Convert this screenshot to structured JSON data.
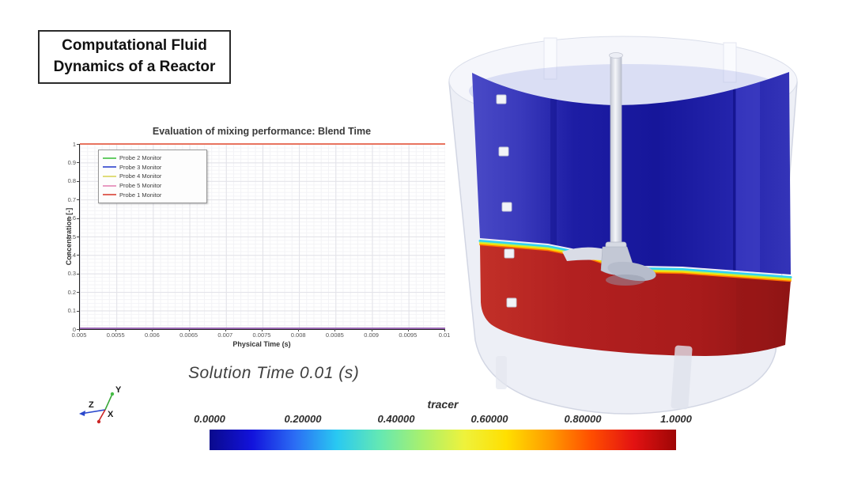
{
  "slide": {
    "title_line1": "Computational Fluid",
    "title_line2": "Dynamics of a Reactor",
    "solution_time": "Solution Time 0.01 (s)"
  },
  "chart": {
    "title": "Evaluation of mixing performance: Blend Time",
    "xlabel": "Physical Time (s)",
    "ylabel": "Concentration [-]",
    "x_ticks": [
      "0.005",
      "0.0055",
      "0.006",
      "0.0065",
      "0.007",
      "0.0075",
      "0.008",
      "0.0085",
      "0.009",
      "0.0095",
      "0.01"
    ],
    "y_ticks": [
      "1",
      "0.9",
      "0.8",
      "0.7",
      "0.6",
      "0.5",
      "0.4",
      "0.3",
      "0.2",
      "0.1",
      "0"
    ],
    "legend": [
      {
        "label": "Probe 2 Monitor",
        "color": "#66cc66"
      },
      {
        "label": "Probe 3 Monitor",
        "color": "#5566d6"
      },
      {
        "label": "Probe 4 Monitor",
        "color": "#e0dc7a"
      },
      {
        "label": "Probe 5 Monitor",
        "color": "#e89cc2"
      },
      {
        "label": "Probe 1 Monitor",
        "color": "#e0665c"
      }
    ],
    "top_line_color": "#e8735f",
    "bottom_line_color": "#9a68b4"
  },
  "chart_data": {
    "type": "line",
    "title": "Evaluation of mixing performance: Blend Time",
    "xlabel": "Physical Time (s)",
    "ylabel": "Concentration [-]",
    "xlim": [
      0.005,
      0.01
    ],
    "ylim": [
      0,
      1
    ],
    "grid": true,
    "legend_position": "upper left",
    "series": [
      {
        "name": "Probe 2 Monitor",
        "color": "#66cc66",
        "x": [
          0.005,
          0.01
        ],
        "y": [
          0,
          0
        ]
      },
      {
        "name": "Probe 3 Monitor",
        "color": "#5566d6",
        "x": [
          0.005,
          0.01
        ],
        "y": [
          0,
          0
        ]
      },
      {
        "name": "Probe 4 Monitor",
        "color": "#e0dc7a",
        "x": [
          0.005,
          0.01
        ],
        "y": [
          0,
          0
        ]
      },
      {
        "name": "Probe 5 Monitor",
        "color": "#e89cc2",
        "x": [
          0.005,
          0.01
        ],
        "y": [
          0,
          0
        ]
      },
      {
        "name": "Probe 1 Monitor",
        "color": "#e0665c",
        "x": [
          0.005,
          0.01
        ],
        "y": [
          1,
          1
        ]
      }
    ]
  },
  "colorbar": {
    "title": "tracer",
    "ticks": [
      "0.0000",
      "0.20000",
      "0.40000",
      "0.60000",
      "0.80000",
      "1.0000"
    ],
    "range": [
      0,
      1
    ],
    "gradient": [
      "#0a0a8c",
      "#1212dc",
      "#2b6cf4",
      "#29c9f2",
      "#63e8b4",
      "#a8f06e",
      "#eef23c",
      "#ffdf00",
      "#ff9c00",
      "#ff4e00",
      "#e31212",
      "#9e0606"
    ]
  },
  "triad": {
    "x": "X",
    "y": "Y",
    "z": "Z"
  },
  "reactor": {
    "fluid_top_color": "#1a1aa0",
    "fluid_bottom_color": "#b01f1f",
    "probe_count": 5
  }
}
